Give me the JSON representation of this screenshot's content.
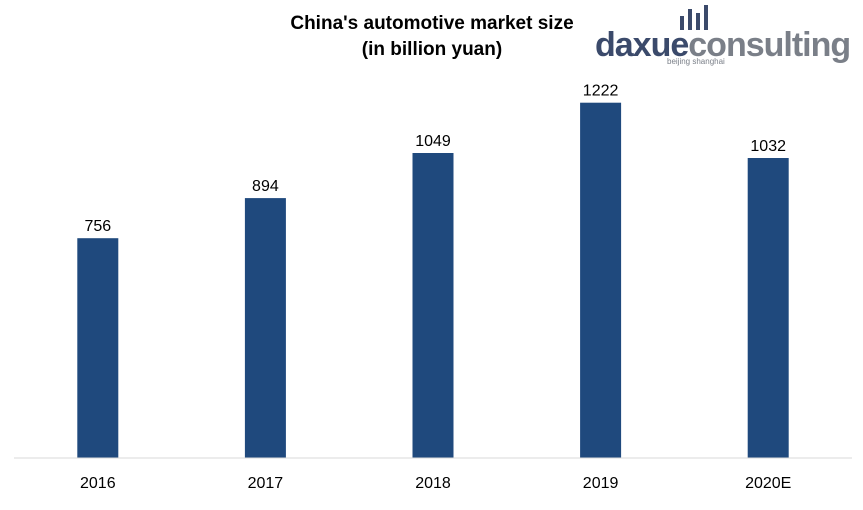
{
  "chart_data": {
    "type": "bar",
    "title_lines": [
      "China's automotive market size",
      "(in billion yuan)"
    ],
    "categories": [
      "2016",
      "2017",
      "2018",
      "2019",
      "2020E"
    ],
    "values": [
      756,
      894,
      1049,
      1222,
      1032
    ],
    "data_labels": [
      "756",
      "894",
      "1049",
      "1222",
      "1032"
    ],
    "xlabel": "",
    "ylabel": "",
    "ylim": [
      0,
      1400
    ],
    "grid": false,
    "legend": "none",
    "bar_color": "#1f497d"
  },
  "logo": {
    "brand_part1": "daxue",
    "brand_part2": "consulting",
    "tagline": "beijing shanghai",
    "color_dark": "#3b4a6b",
    "color_light": "#7a7f88"
  }
}
